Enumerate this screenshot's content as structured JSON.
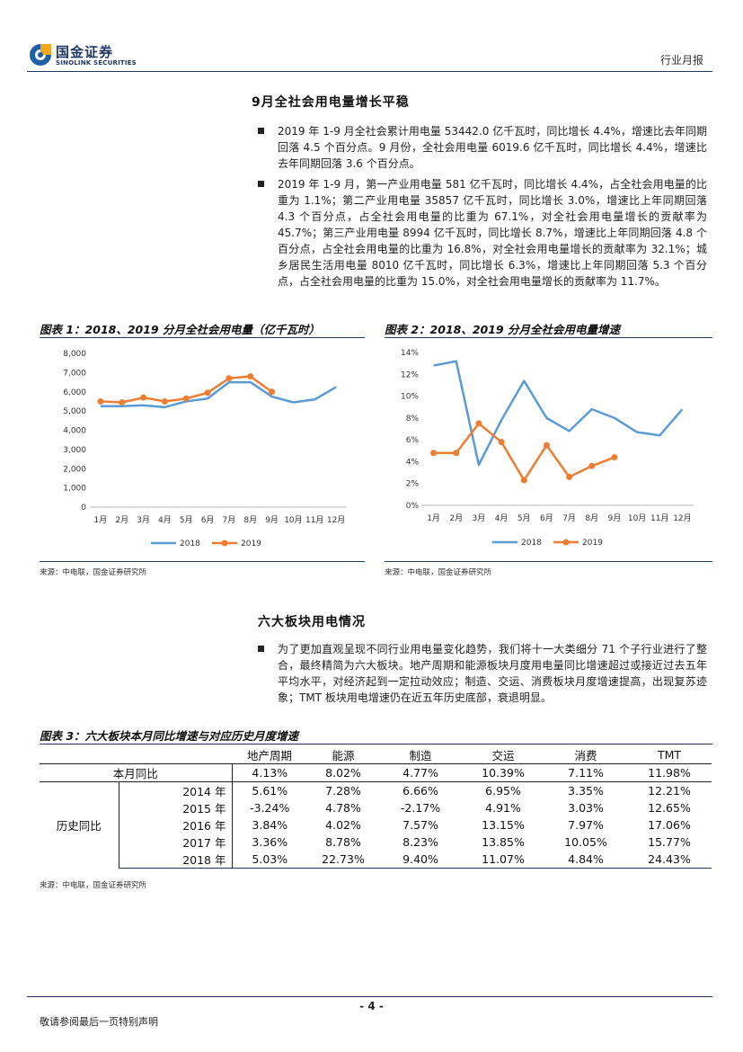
{
  "header": {
    "logo_cn": "国金证券",
    "logo_en": "SINOLINK SECURITIES",
    "report_type": "行业月报"
  },
  "section1": {
    "title": "9月全社会用电量增长平稳",
    "bullets": [
      "2019 年 1-9 月全社会累计用电量 53442.0 亿千瓦时，同比增长 4.4%，增速比去年同期回落 4.5 个百分点。9 月份，全社会用电量 6019.6 亿千瓦时，同比增长 4.4%，增速比去年同期回落 3.6 个百分点。",
      "2019 年 1-9 月，第一产业用电量 581 亿千瓦时，同比增长 4.4%，占全社会用电量的比重为 1.1%；第二产业用电量 35857 亿千瓦时，同比增长 3.0%，增速比上年同期回落 4.3 个百分点，占全社会用电量的比重为 67.1%，对全社会用电量增长的贡献率为 45.7%；第三产业用电量 8994 亿千瓦时，同比增长 8.7%，增速比上年同期回落 4.8 个百分点，占全社会用电量的比重为 16.8%，对全社会用电量增长的贡献率为 32.1%；城乡居民生活用电量 8010 亿千瓦时，同比增长 6.3%，增速比上年同期回落 5.3 个百分点，占全社会用电量的比重为 15.0%，对全社会用电量增长的贡献率为 11.7%。"
    ]
  },
  "fig1_title": "图表 1：2018、2019 分月全社会用电量（亿千瓦时）",
  "fig2_title": "图表 2：2018、2019 分月全社会用电量增速",
  "source_label": "来源：中电联，国金证券研究所",
  "chart_data": [
    {
      "type": "line",
      "categories": [
        "1月",
        "2月",
        "3月",
        "4月",
        "5月",
        "6月",
        "7月",
        "8月",
        "9月",
        "10月",
        "11月",
        "12月"
      ],
      "series": [
        {
          "name": "2018",
          "color": "#5b9bd5",
          "values": [
            5250,
            5250,
            5300,
            5200,
            5500,
            5650,
            6500,
            6500,
            5750,
            5450,
            5600,
            6250
          ]
        },
        {
          "name": "2019",
          "color": "#ed7d31",
          "values": [
            5500,
            5450,
            5700,
            5500,
            5650,
            5950,
            6700,
            6800,
            6000,
            null,
            null,
            null
          ]
        }
      ],
      "yticks": [
        "0",
        "1,000",
        "2,000",
        "3,000",
        "4,000",
        "5,000",
        "6,000",
        "7,000",
        "8,000"
      ],
      "ylim": [
        0,
        8000
      ],
      "legend": "bottom",
      "grid": false
    },
    {
      "type": "line",
      "categories": [
        "1月",
        "2月",
        "3月",
        "4月",
        "5月",
        "6月",
        "7月",
        "8月",
        "9月",
        "10月",
        "11月",
        "12月"
      ],
      "series": [
        {
          "name": "2018",
          "color": "#5b9bd5",
          "values": [
            12.8,
            13.2,
            3.7,
            7.8,
            11.4,
            8.0,
            6.8,
            8.8,
            8.0,
            6.7,
            6.4,
            8.8
          ]
        },
        {
          "name": "2019",
          "color": "#ed7d31",
          "values": [
            4.8,
            4.8,
            7.5,
            5.8,
            2.3,
            5.5,
            2.6,
            3.6,
            4.4,
            null,
            null,
            null
          ]
        }
      ],
      "yticks": [
        "0%",
        "2%",
        "4%",
        "6%",
        "8%",
        "10%",
        "12%",
        "14%"
      ],
      "ylim": [
        0,
        14
      ],
      "legend": "bottom",
      "grid": false
    }
  ],
  "section2": {
    "title": "六大板块用电情况",
    "bullets": [
      "为了更加直观呈现不同行业用电量变化趋势，我们将十一大类细分 71 个子行业进行了整合，最终精简为六大板块。地产周期和能源板块月度用电量同比增速超过或接近过去五年平均水平，对经济起到一定拉动效应；制造、交运、消费板块月度增速提高，出现复苏迹象；TMT 板块用电增速仍在近五年历史底部，衰退明显。"
    ]
  },
  "table3": {
    "title": "图表 3：六大板块本月同比增速与对应历史月度增速",
    "headers": [
      "地产周期",
      "能源",
      "制造",
      "交运",
      "消费",
      "TMT"
    ],
    "current_label": "本月同比",
    "current": [
      "4.13%",
      "8.02%",
      "4.77%",
      "10.39%",
      "7.11%",
      "11.98%"
    ],
    "history_label": "历史同比",
    "history": [
      {
        "year": "2014 年",
        "values": [
          "5.61%",
          "7.28%",
          "6.66%",
          "6.95%",
          "3.35%",
          "12.21%"
        ]
      },
      {
        "year": "2015 年",
        "values": [
          "-3.24%",
          "4.78%",
          "-2.17%",
          "4.91%",
          "3.03%",
          "12.65%"
        ]
      },
      {
        "year": "2016 年",
        "values": [
          "3.84%",
          "4.02%",
          "7.57%",
          "13.15%",
          "7.97%",
          "17.06%"
        ]
      },
      {
        "year": "2017 年",
        "values": [
          "3.36%",
          "8.78%",
          "8.23%",
          "13.85%",
          "10.05%",
          "15.77%"
        ]
      },
      {
        "year": "2018 年",
        "values": [
          "5.03%",
          "22.73%",
          "9.40%",
          "11.07%",
          "4.84%",
          "24.43%"
        ]
      }
    ]
  },
  "footer": {
    "page": "- 4 -",
    "disclaimer": "敬请参阅最后一页特别声明"
  }
}
